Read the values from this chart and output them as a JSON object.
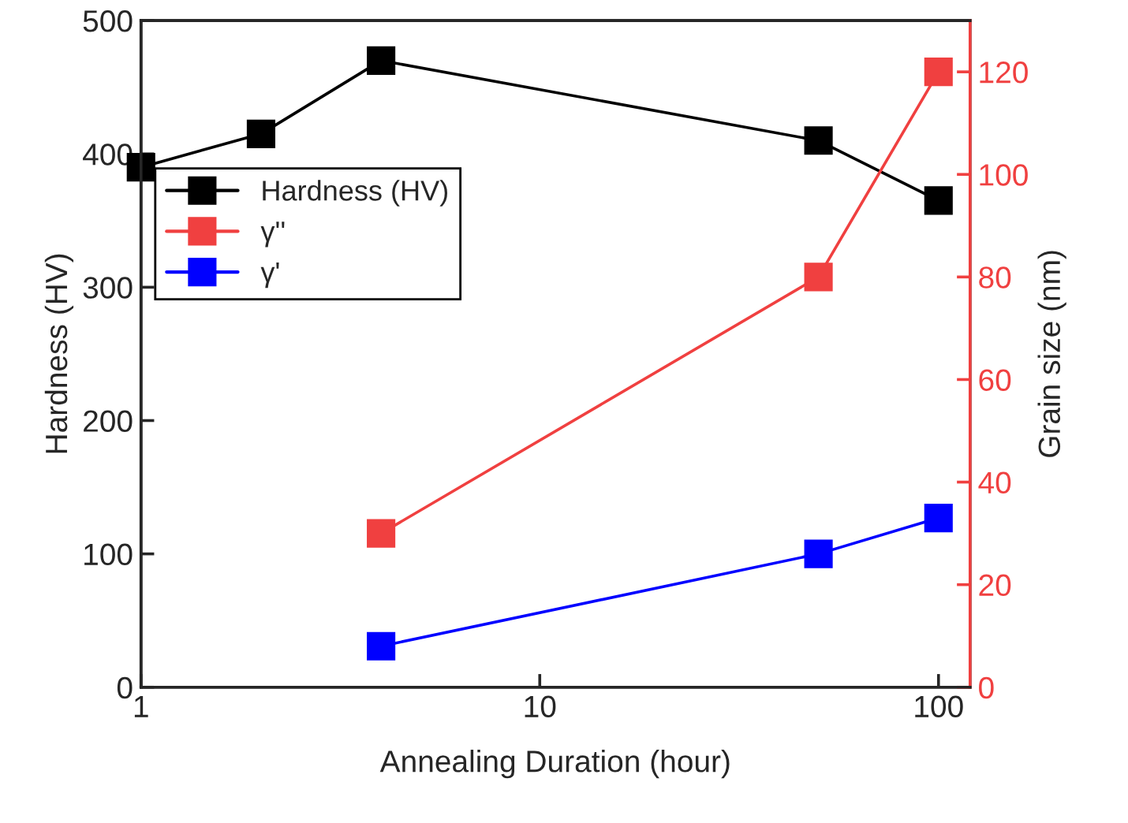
{
  "chart_data": {
    "type": "line",
    "xlabel": "Annealing Duration (hour)",
    "ylabel": "Hardness (HV)",
    "y2label": "Grain size (nm)",
    "log": "x",
    "xlim": [
      1,
      120
    ],
    "xticks": [
      1,
      10,
      100
    ],
    "ylim": [
      0,
      500
    ],
    "yticks": [
      0,
      100,
      200,
      300,
      400,
      500
    ],
    "y2lim": [
      0,
      130
    ],
    "y2ticks": [
      0,
      20,
      40,
      60,
      80,
      100,
      120
    ],
    "grid": false,
    "legend": "left",
    "marker": "square",
    "line_style": "solid",
    "series": [
      {
        "name": "Hardness (HV)",
        "color": "#000000",
        "x": [
          1,
          2,
          4,
          50,
          100
        ],
        "values": [
          390,
          415,
          470,
          410,
          365
        ]
      },
      {
        "name": "γ''",
        "color": "#f04040",
        "axis": "y2",
        "x": [
          4,
          50,
          100
        ],
        "values": [
          30,
          80,
          120
        ]
      },
      {
        "name": "γ'",
        "color": "#0000ff",
        "axis": "y2",
        "x": [
          4,
          50,
          100
        ],
        "values": [
          8,
          26,
          33
        ]
      }
    ]
  }
}
